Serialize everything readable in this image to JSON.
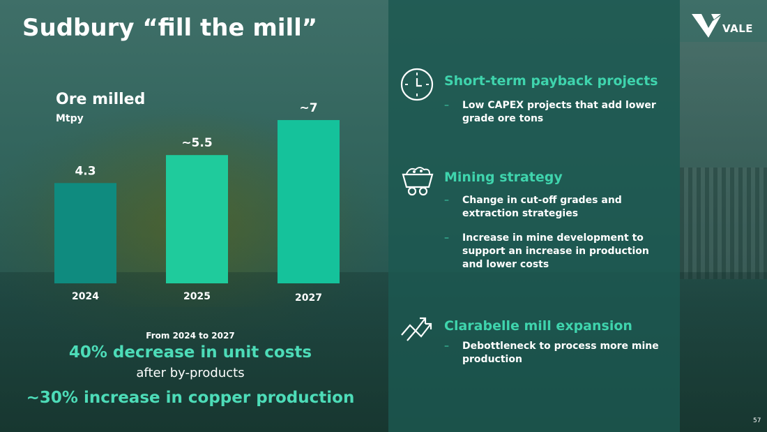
{
  "slide": {
    "title": "Sudbury “fill the mill”",
    "page_number": "57"
  },
  "logo": {
    "text": "VALE"
  },
  "chart_data": {
    "type": "bar",
    "title": "Ore milled",
    "ylabel": "Mtpy",
    "categories": [
      "2024",
      "2025",
      "2027"
    ],
    "values": [
      4.3,
      5.5,
      7
    ],
    "value_labels": [
      "4.3",
      "~5.5",
      "~7"
    ],
    "bar_colors": [
      "#0f8b7f",
      "#1fcb9c",
      "#15c29b"
    ],
    "ylim": [
      0,
      7.6
    ],
    "grid": false
  },
  "summary": {
    "period": "From 2024 to 2027",
    "highlight1": "40% decrease in unit costs",
    "highlight1_sub": "after by-products",
    "highlight2": "~30% increase in copper production"
  },
  "colors": {
    "accent": "#3fd4ad",
    "panel": "#1c5850"
  },
  "sections": [
    {
      "icon": "clock-icon",
      "heading": "Short-term payback projects",
      "bullets": [
        "Low CAPEX projects that add lower grade ore tons"
      ]
    },
    {
      "icon": "mine-cart-icon",
      "heading": "Mining strategy",
      "bullets": [
        "Change in cut-off grades and extraction strategies",
        "Increase in mine development to support an increase in production and lower costs"
      ]
    },
    {
      "icon": "trend-up-icon",
      "heading": "Clarabelle mill expansion",
      "bullets": [
        "Debottleneck to process more mine production"
      ]
    }
  ],
  "bullet_dash": "–"
}
